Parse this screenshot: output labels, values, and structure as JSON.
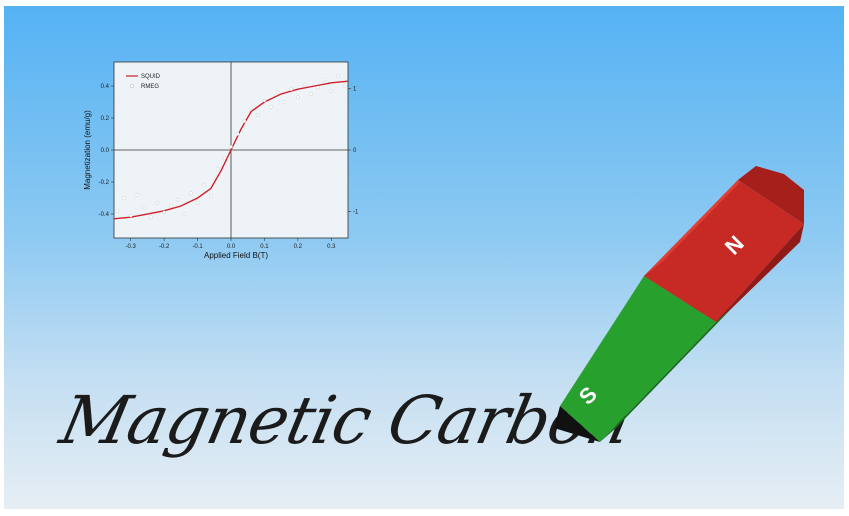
{
  "title": "Magnetic Carbon",
  "magnet": {
    "north_label": "N",
    "south_label": "S",
    "colors": {
      "north": "#c72a25",
      "south": "#2aa02f",
      "tip": "#111111"
    }
  },
  "chart_data": {
    "type": "line",
    "xlabel": "Applied Field B(T)",
    "ylabel": "Magnetization (emu/g)",
    "xlim": [
      -0.35,
      0.35
    ],
    "ylim": [
      -0.55,
      0.55
    ],
    "x_ticks": [
      "-0.3",
      "-0.2",
      "-0.1",
      "0.0",
      "0.1",
      "0.2",
      "0.3"
    ],
    "y_ticks": [
      "-0.4",
      "-0.2",
      "0.0",
      "0.2",
      "0.4"
    ],
    "right_ticks": [
      "1",
      "0",
      "-1"
    ],
    "legend": "top-left",
    "colors": {
      "line": "#d0202a",
      "points": "#ffffff"
    },
    "series": [
      {
        "name": "SQUID",
        "style": "line",
        "x": [
          -0.35,
          -0.3,
          -0.25,
          -0.2,
          -0.15,
          -0.1,
          -0.06,
          -0.03,
          0.0,
          0.03,
          0.06,
          0.1,
          0.15,
          0.2,
          0.25,
          0.3,
          0.35
        ],
        "y": [
          -0.43,
          -0.42,
          -0.4,
          -0.38,
          -0.35,
          -0.3,
          -0.24,
          -0.13,
          0.0,
          0.13,
          0.24,
          0.3,
          0.35,
          0.38,
          0.4,
          0.42,
          0.43
        ]
      },
      {
        "name": "RMEG",
        "style": "points",
        "x": [
          -0.34,
          -0.32,
          -0.3,
          -0.28,
          -0.26,
          -0.24,
          -0.22,
          -0.2,
          -0.18,
          -0.16,
          -0.14,
          -0.12,
          -0.1,
          -0.08,
          -0.06,
          -0.04,
          -0.02,
          0.0,
          0.02,
          0.04,
          0.06,
          0.08,
          0.1,
          0.12,
          0.14,
          0.16,
          0.18,
          0.2,
          0.22,
          0.24,
          0.26,
          0.28,
          0.3,
          0.32,
          0.34
        ],
        "y": [
          -0.38,
          -0.3,
          -0.41,
          -0.28,
          -0.36,
          -0.42,
          -0.33,
          -0.39,
          -0.35,
          -0.31,
          -0.4,
          -0.27,
          -0.33,
          -0.22,
          -0.29,
          -0.12,
          -0.05,
          0.02,
          0.1,
          0.18,
          0.26,
          0.22,
          0.31,
          0.27,
          0.36,
          0.3,
          0.38,
          0.33,
          0.41,
          0.35,
          0.39,
          0.44,
          0.37,
          0.46,
          0.4
        ]
      }
    ]
  }
}
